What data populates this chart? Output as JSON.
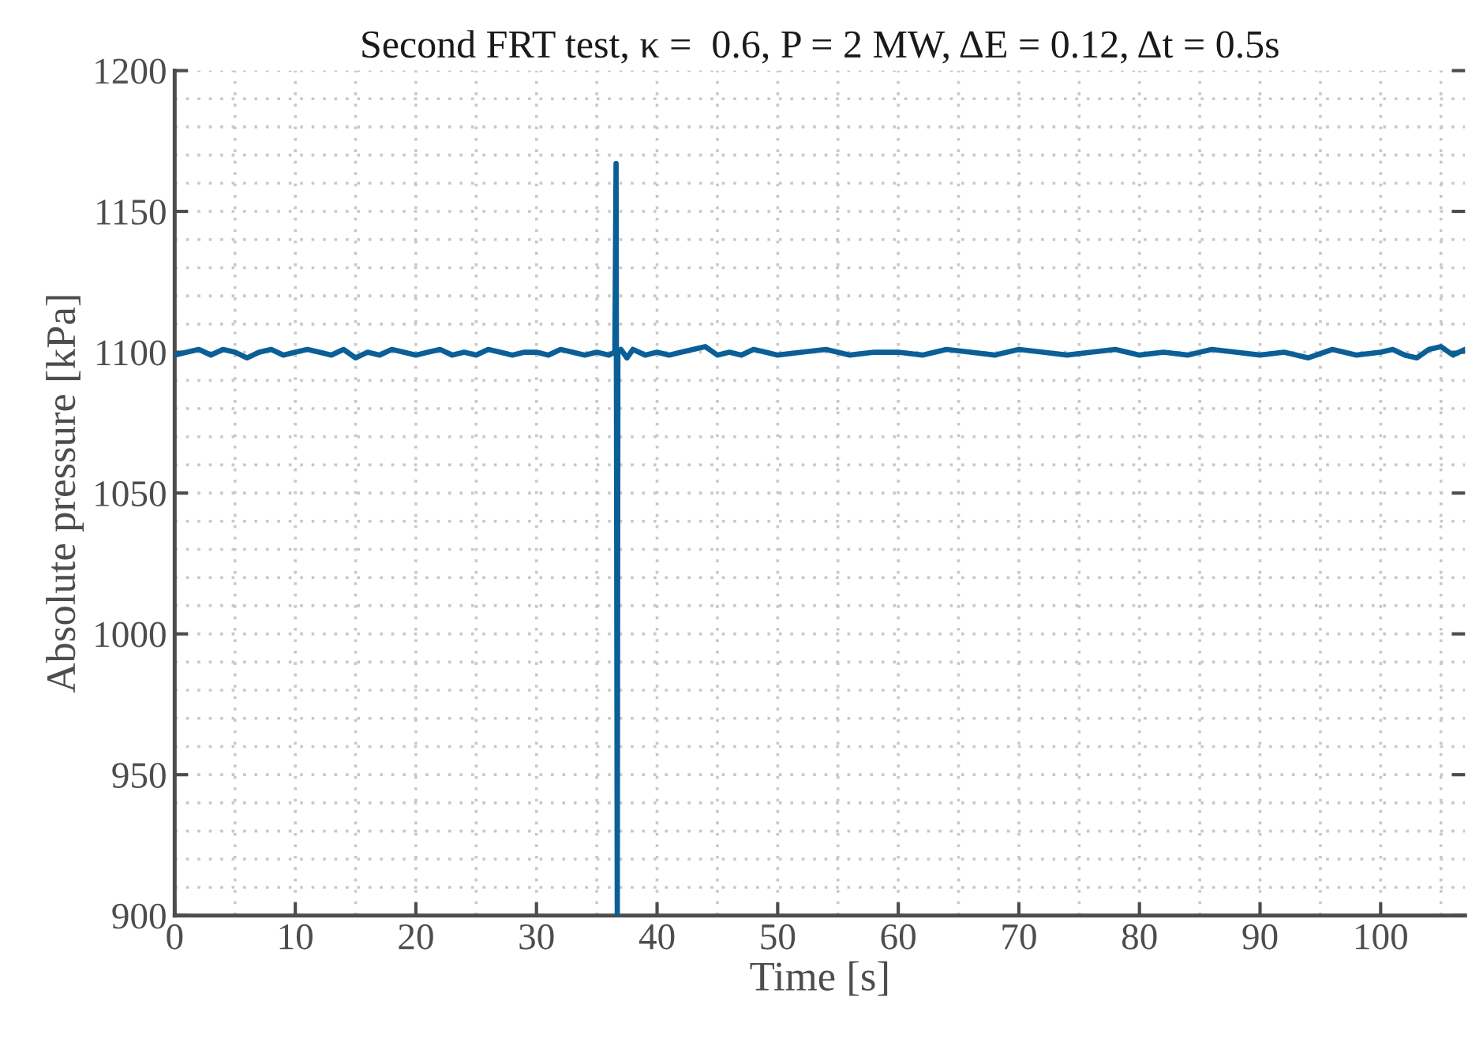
{
  "chart_data": {
    "type": "line",
    "title": "Second FRT test, κ =  0.6, P = 2 MW, ΔE = 0.12, Δt = 0.5s",
    "xlabel": "Time [s]",
    "ylabel": "Absolute pressure [kPa]",
    "x": [
      0,
      1,
      2,
      3,
      4,
      5,
      6,
      7,
      8,
      9,
      10,
      11,
      12,
      13,
      14,
      15,
      16,
      17,
      18,
      19,
      20,
      21,
      22,
      23,
      24,
      25,
      26,
      27,
      28,
      29,
      30,
      31,
      32,
      33,
      34,
      35,
      36,
      36.5,
      36.6,
      36.65,
      36.7,
      36.75,
      37,
      37.5,
      38,
      39,
      40,
      41,
      42,
      43,
      44,
      45,
      46,
      47,
      48,
      49,
      50,
      52,
      54,
      56,
      58,
      60,
      62,
      64,
      66,
      68,
      70,
      72,
      74,
      76,
      78,
      80,
      82,
      84,
      86,
      88,
      90,
      92,
      94,
      96,
      98,
      100,
      101,
      102,
      103,
      104,
      105,
      106,
      107
    ],
    "series": [
      {
        "color": "#0a5f96",
        "values": [
          1099,
          1100,
          1101,
          1099,
          1101,
          1100,
          1098,
          1100,
          1101,
          1099,
          1100,
          1101,
          1100,
          1099,
          1101,
          1098,
          1100,
          1099,
          1101,
          1100,
          1099,
          1100,
          1101,
          1099,
          1100,
          1099,
          1101,
          1100,
          1099,
          1100,
          1100,
          1099,
          1101,
          1100,
          1099,
          1100,
          1099,
          1100,
          1167,
          1040,
          900,
          1100,
          1101,
          1098,
          1101,
          1099,
          1100,
          1099,
          1100,
          1101,
          1102,
          1099,
          1100,
          1099,
          1101,
          1100,
          1099,
          1100,
          1101,
          1099,
          1100,
          1100,
          1099,
          1101,
          1100,
          1099,
          1101,
          1100,
          1099,
          1100,
          1101,
          1099,
          1100,
          1099,
          1101,
          1100,
          1099,
          1100,
          1098,
          1101,
          1099,
          1100,
          1101,
          1099,
          1098,
          1101,
          1102,
          1099,
          1101
        ]
      }
    ],
    "xlim": [
      0,
      107
    ],
    "ylim": [
      900,
      1200
    ],
    "xticks": [
      0,
      10,
      20,
      30,
      40,
      50,
      60,
      70,
      80,
      90,
      100
    ],
    "yticks": [
      900,
      950,
      1000,
      1050,
      1100,
      1150,
      1200
    ],
    "grid": true,
    "marker": "none",
    "line_style": "solid",
    "legend": false
  }
}
